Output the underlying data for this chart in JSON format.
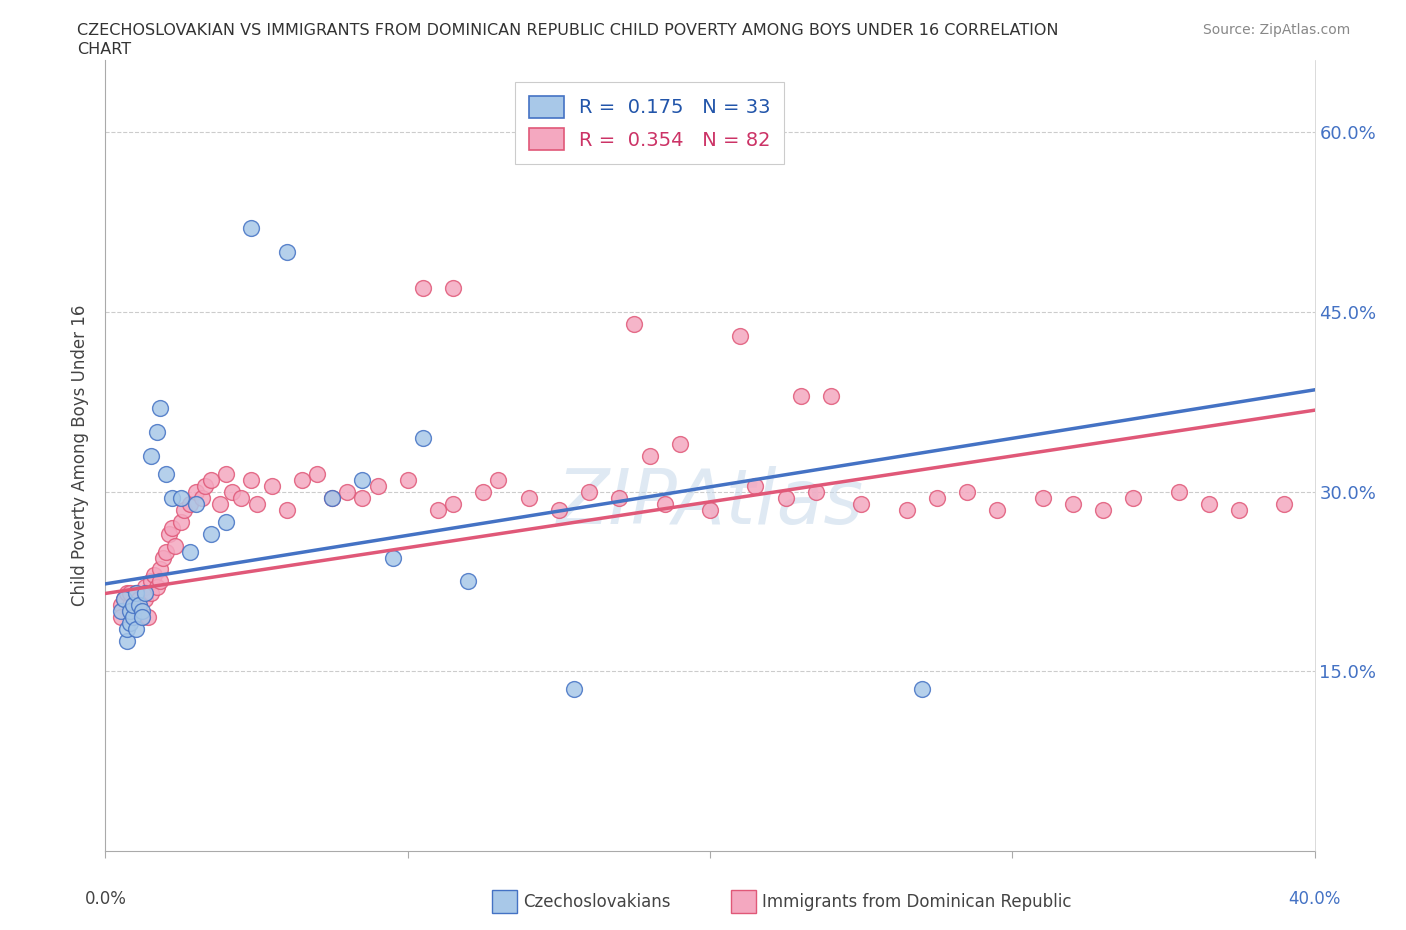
{
  "title_line1": "CZECHOSLOVAKIAN VS IMMIGRANTS FROM DOMINICAN REPUBLIC CHILD POVERTY AMONG BOYS UNDER 16 CORRELATION",
  "title_line2": "CHART",
  "source": "Source: ZipAtlas.com",
  "ylabel": "Child Poverty Among Boys Under 16",
  "yticks_labels": [
    "15.0%",
    "30.0%",
    "45.0%",
    "60.0%"
  ],
  "ytick_vals": [
    0.15,
    0.3,
    0.45,
    0.6
  ],
  "xlim": [
    0.0,
    0.4
  ],
  "ylim": [
    0.0,
    0.66
  ],
  "color_czech": "#a8c8e8",
  "color_dr": "#f4a8c0",
  "color_line_czech": "#4472c4",
  "color_line_dr": "#e05878",
  "legend_label1": "R =  0.175   N = 33",
  "legend_label2": "R =  0.354   N = 82",
  "legend_color1": "#2255aa",
  "legend_color2": "#cc3366",
  "watermark": "ZIPAtlas",
  "czech_x": [
    0.005,
    0.006,
    0.007,
    0.007,
    0.008,
    0.008,
    0.009,
    0.009,
    0.01,
    0.01,
    0.011,
    0.012,
    0.012,
    0.013,
    0.015,
    0.017,
    0.018,
    0.02,
    0.022,
    0.025,
    0.028,
    0.03,
    0.035,
    0.04,
    0.048,
    0.06,
    0.075,
    0.085,
    0.095,
    0.105,
    0.12,
    0.155,
    0.27
  ],
  "czech_y": [
    0.2,
    0.21,
    0.175,
    0.185,
    0.19,
    0.2,
    0.195,
    0.205,
    0.185,
    0.215,
    0.205,
    0.2,
    0.195,
    0.215,
    0.33,
    0.35,
    0.37,
    0.315,
    0.295,
    0.295,
    0.25,
    0.29,
    0.265,
    0.275,
    0.52,
    0.5,
    0.295,
    0.31,
    0.245,
    0.345,
    0.225,
    0.135,
    0.135
  ],
  "dr_x": [
    0.005,
    0.005,
    0.006,
    0.007,
    0.008,
    0.008,
    0.009,
    0.01,
    0.01,
    0.011,
    0.011,
    0.012,
    0.013,
    0.013,
    0.014,
    0.015,
    0.015,
    0.016,
    0.017,
    0.018,
    0.018,
    0.019,
    0.02,
    0.021,
    0.022,
    0.023,
    0.025,
    0.026,
    0.028,
    0.03,
    0.032,
    0.033,
    0.035,
    0.038,
    0.04,
    0.042,
    0.045,
    0.048,
    0.05,
    0.055,
    0.06,
    0.065,
    0.07,
    0.075,
    0.08,
    0.085,
    0.09,
    0.1,
    0.11,
    0.115,
    0.125,
    0.13,
    0.14,
    0.15,
    0.16,
    0.17,
    0.185,
    0.2,
    0.215,
    0.225,
    0.235,
    0.25,
    0.265,
    0.275,
    0.285,
    0.295,
    0.31,
    0.32,
    0.33,
    0.34,
    0.355,
    0.365,
    0.375,
    0.39,
    0.105,
    0.115,
    0.175,
    0.21,
    0.23,
    0.24,
    0.18,
    0.19
  ],
  "dr_y": [
    0.205,
    0.195,
    0.21,
    0.215,
    0.205,
    0.215,
    0.2,
    0.215,
    0.205,
    0.21,
    0.2,
    0.195,
    0.21,
    0.22,
    0.195,
    0.215,
    0.225,
    0.23,
    0.22,
    0.235,
    0.225,
    0.245,
    0.25,
    0.265,
    0.27,
    0.255,
    0.275,
    0.285,
    0.29,
    0.3,
    0.295,
    0.305,
    0.31,
    0.29,
    0.315,
    0.3,
    0.295,
    0.31,
    0.29,
    0.305,
    0.285,
    0.31,
    0.315,
    0.295,
    0.3,
    0.295,
    0.305,
    0.31,
    0.285,
    0.29,
    0.3,
    0.31,
    0.295,
    0.285,
    0.3,
    0.295,
    0.29,
    0.285,
    0.305,
    0.295,
    0.3,
    0.29,
    0.285,
    0.295,
    0.3,
    0.285,
    0.295,
    0.29,
    0.285,
    0.295,
    0.3,
    0.29,
    0.285,
    0.29,
    0.47,
    0.47,
    0.44,
    0.43,
    0.38,
    0.38,
    0.33,
    0.34
  ]
}
